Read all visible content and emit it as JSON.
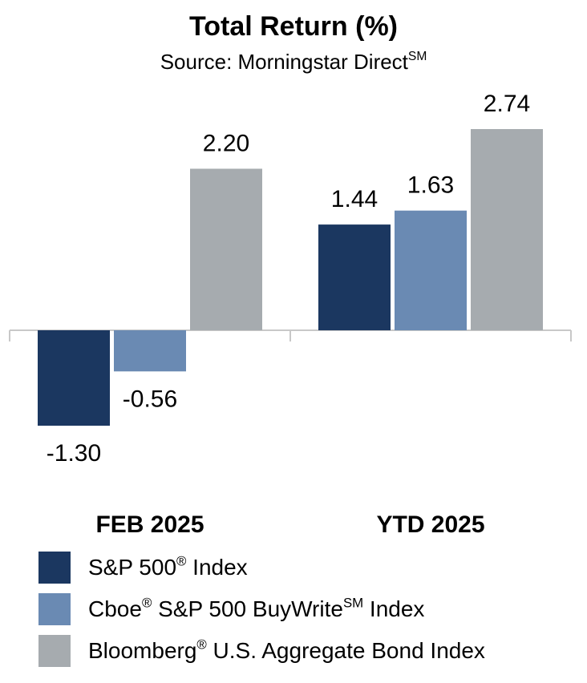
{
  "chart_data": {
    "type": "bar",
    "title": "Total Return (%)",
    "subtitle": {
      "text": "Source: Morningstar Direct",
      "sup": "SM"
    },
    "categories": [
      "FEB 2025",
      "YTD 2025"
    ],
    "series": [
      {
        "name": "S&P 500® Index",
        "values": [
          -1.3,
          1.44
        ],
        "color": "#1b3760"
      },
      {
        "name": "Cboe® S&P 500 BuyWrite℠ Index",
        "values": [
          -0.56,
          1.63
        ],
        "color": "#6a8ab3"
      },
      {
        "name": "Bloomberg® U.S. Aggregate Bond Index",
        "values": [
          2.2,
          2.74
        ],
        "color": "#a6abaf"
      }
    ],
    "value_labels": [
      [
        "-1.30",
        "1.44"
      ],
      [
        "-0.56",
        "1.63"
      ],
      [
        "2.20",
        "2.74"
      ]
    ],
    "ylim": [
      -1.5,
      3.0
    ],
    "grid": false,
    "legend_position": "bottom"
  },
  "legend": [
    {
      "parts": [
        "S&P 500",
        "®",
        " Index"
      ]
    },
    {
      "parts": [
        "Cboe",
        "®",
        " S&P 500 BuyWrite",
        "SM",
        " Index"
      ]
    },
    {
      "parts": [
        "Bloomberg",
        "®",
        " U.S. Aggregate Bond Index"
      ]
    }
  ]
}
